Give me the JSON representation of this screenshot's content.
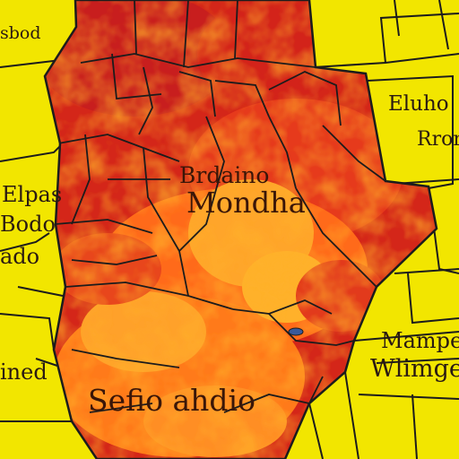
{
  "map": {
    "base_color": "#f2e600",
    "heat_colors": {
      "dark_red": "#c81e1e",
      "red": "#e63a1c",
      "orange": "#ff7a1a",
      "amber": "#ffb12a",
      "yellow": "#f5d33a",
      "border": "#1c1c1c"
    },
    "labels": {
      "top_left": "sbod",
      "right_1": "Eluho",
      "right_2": "Rrorra",
      "left_1": "Elpas",
      "left_2": "Bodo",
      "left_3": "ado",
      "center_1": "Brdaino",
      "center_2": "Mondha",
      "right_3": "Mampe",
      "right_4": "Wlimgea",
      "left_4": "ined",
      "bottom": "Sefio ahdio"
    }
  }
}
